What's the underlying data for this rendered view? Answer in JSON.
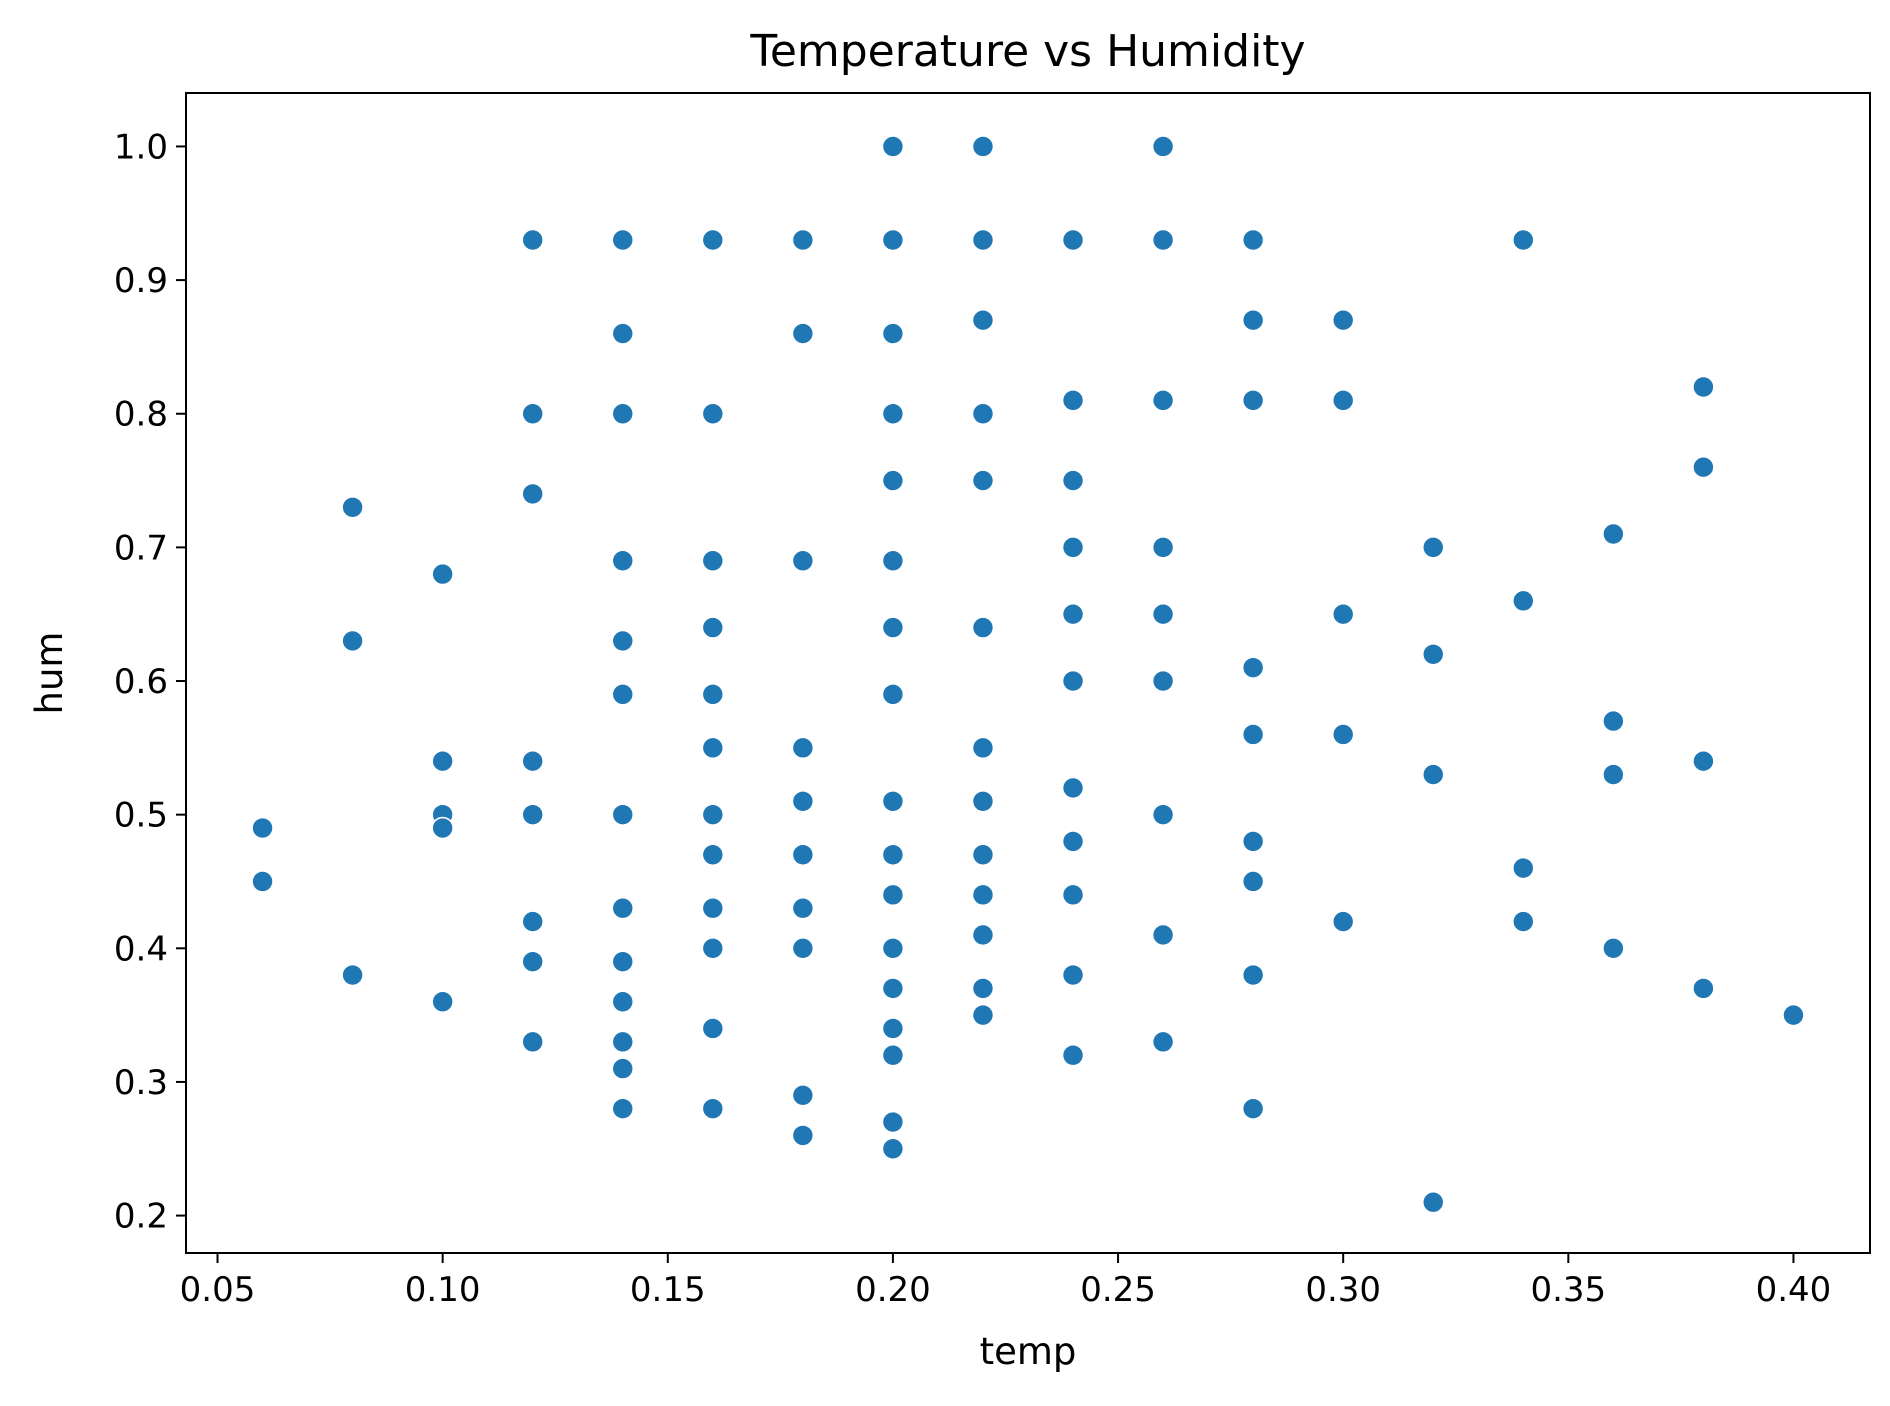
{
  "chart_data": {
    "type": "scatter",
    "title": "Temperature vs Humidity",
    "xlabel": "temp",
    "ylabel": "hum",
    "xlim": [
      0.043,
      0.417
    ],
    "ylim": [
      0.172,
      1.04
    ],
    "xticks": [
      "0.05",
      "0.10",
      "0.15",
      "0.20",
      "0.25",
      "0.30",
      "0.35",
      "0.40"
    ],
    "yticks": [
      "0.2",
      "0.3",
      "0.4",
      "0.5",
      "0.6",
      "0.7",
      "0.8",
      "0.9",
      "1.0"
    ],
    "grid": false,
    "marker_color": "#1f77b4",
    "points": [
      [
        0.06,
        0.49
      ],
      [
        0.06,
        0.45
      ],
      [
        0.08,
        0.73
      ],
      [
        0.08,
        0.63
      ],
      [
        0.08,
        0.38
      ],
      [
        0.1,
        0.68
      ],
      [
        0.1,
        0.54
      ],
      [
        0.1,
        0.5
      ],
      [
        0.1,
        0.49
      ],
      [
        0.1,
        0.36
      ],
      [
        0.12,
        0.93
      ],
      [
        0.12,
        0.8
      ],
      [
        0.12,
        0.74
      ],
      [
        0.12,
        0.54
      ],
      [
        0.12,
        0.5
      ],
      [
        0.12,
        0.42
      ],
      [
        0.12,
        0.39
      ],
      [
        0.12,
        0.33
      ],
      [
        0.14,
        0.93
      ],
      [
        0.14,
        0.86
      ],
      [
        0.14,
        0.8
      ],
      [
        0.14,
        0.69
      ],
      [
        0.14,
        0.63
      ],
      [
        0.14,
        0.59
      ],
      [
        0.14,
        0.5
      ],
      [
        0.14,
        0.43
      ],
      [
        0.14,
        0.39
      ],
      [
        0.14,
        0.36
      ],
      [
        0.14,
        0.33
      ],
      [
        0.14,
        0.31
      ],
      [
        0.14,
        0.28
      ],
      [
        0.16,
        0.93
      ],
      [
        0.16,
        0.8
      ],
      [
        0.16,
        0.69
      ],
      [
        0.16,
        0.64
      ],
      [
        0.16,
        0.59
      ],
      [
        0.16,
        0.55
      ],
      [
        0.16,
        0.5
      ],
      [
        0.16,
        0.47
      ],
      [
        0.16,
        0.43
      ],
      [
        0.16,
        0.4
      ],
      [
        0.16,
        0.34
      ],
      [
        0.16,
        0.28
      ],
      [
        0.18,
        0.93
      ],
      [
        0.18,
        0.86
      ],
      [
        0.18,
        0.69
      ],
      [
        0.18,
        0.55
      ],
      [
        0.18,
        0.51
      ],
      [
        0.18,
        0.47
      ],
      [
        0.18,
        0.43
      ],
      [
        0.18,
        0.4
      ],
      [
        0.18,
        0.29
      ],
      [
        0.18,
        0.26
      ],
      [
        0.2,
        1.0
      ],
      [
        0.2,
        0.93
      ],
      [
        0.2,
        0.86
      ],
      [
        0.2,
        0.8
      ],
      [
        0.2,
        0.75
      ],
      [
        0.2,
        0.69
      ],
      [
        0.2,
        0.64
      ],
      [
        0.2,
        0.59
      ],
      [
        0.2,
        0.51
      ],
      [
        0.2,
        0.47
      ],
      [
        0.2,
        0.44
      ],
      [
        0.2,
        0.4
      ],
      [
        0.2,
        0.37
      ],
      [
        0.2,
        0.34
      ],
      [
        0.2,
        0.32
      ],
      [
        0.2,
        0.27
      ],
      [
        0.2,
        0.25
      ],
      [
        0.22,
        1.0
      ],
      [
        0.22,
        0.93
      ],
      [
        0.22,
        0.87
      ],
      [
        0.22,
        0.8
      ],
      [
        0.22,
        0.75
      ],
      [
        0.22,
        0.64
      ],
      [
        0.22,
        0.55
      ],
      [
        0.22,
        0.51
      ],
      [
        0.22,
        0.47
      ],
      [
        0.22,
        0.44
      ],
      [
        0.22,
        0.41
      ],
      [
        0.22,
        0.37
      ],
      [
        0.22,
        0.35
      ],
      [
        0.24,
        0.93
      ],
      [
        0.24,
        0.81
      ],
      [
        0.24,
        0.75
      ],
      [
        0.24,
        0.7
      ],
      [
        0.24,
        0.65
      ],
      [
        0.24,
        0.6
      ],
      [
        0.24,
        0.52
      ],
      [
        0.24,
        0.48
      ],
      [
        0.24,
        0.44
      ],
      [
        0.24,
        0.38
      ],
      [
        0.24,
        0.32
      ],
      [
        0.26,
        1.0
      ],
      [
        0.26,
        0.93
      ],
      [
        0.26,
        0.81
      ],
      [
        0.26,
        0.7
      ],
      [
        0.26,
        0.65
      ],
      [
        0.26,
        0.6
      ],
      [
        0.26,
        0.5
      ],
      [
        0.26,
        0.41
      ],
      [
        0.26,
        0.33
      ],
      [
        0.28,
        0.93
      ],
      [
        0.28,
        0.87
      ],
      [
        0.28,
        0.81
      ],
      [
        0.28,
        0.61
      ],
      [
        0.28,
        0.56
      ],
      [
        0.28,
        0.48
      ],
      [
        0.28,
        0.45
      ],
      [
        0.28,
        0.38
      ],
      [
        0.28,
        0.28
      ],
      [
        0.3,
        0.87
      ],
      [
        0.3,
        0.81
      ],
      [
        0.3,
        0.65
      ],
      [
        0.3,
        0.56
      ],
      [
        0.3,
        0.42
      ],
      [
        0.32,
        0.7
      ],
      [
        0.32,
        0.62
      ],
      [
        0.32,
        0.53
      ],
      [
        0.32,
        0.21
      ],
      [
        0.34,
        0.93
      ],
      [
        0.34,
        0.66
      ],
      [
        0.34,
        0.46
      ],
      [
        0.34,
        0.42
      ],
      [
        0.36,
        0.71
      ],
      [
        0.36,
        0.57
      ],
      [
        0.36,
        0.53
      ],
      [
        0.36,
        0.4
      ],
      [
        0.38,
        0.82
      ],
      [
        0.38,
        0.76
      ],
      [
        0.38,
        0.54
      ],
      [
        0.38,
        0.37
      ],
      [
        0.4,
        0.35
      ]
    ]
  }
}
